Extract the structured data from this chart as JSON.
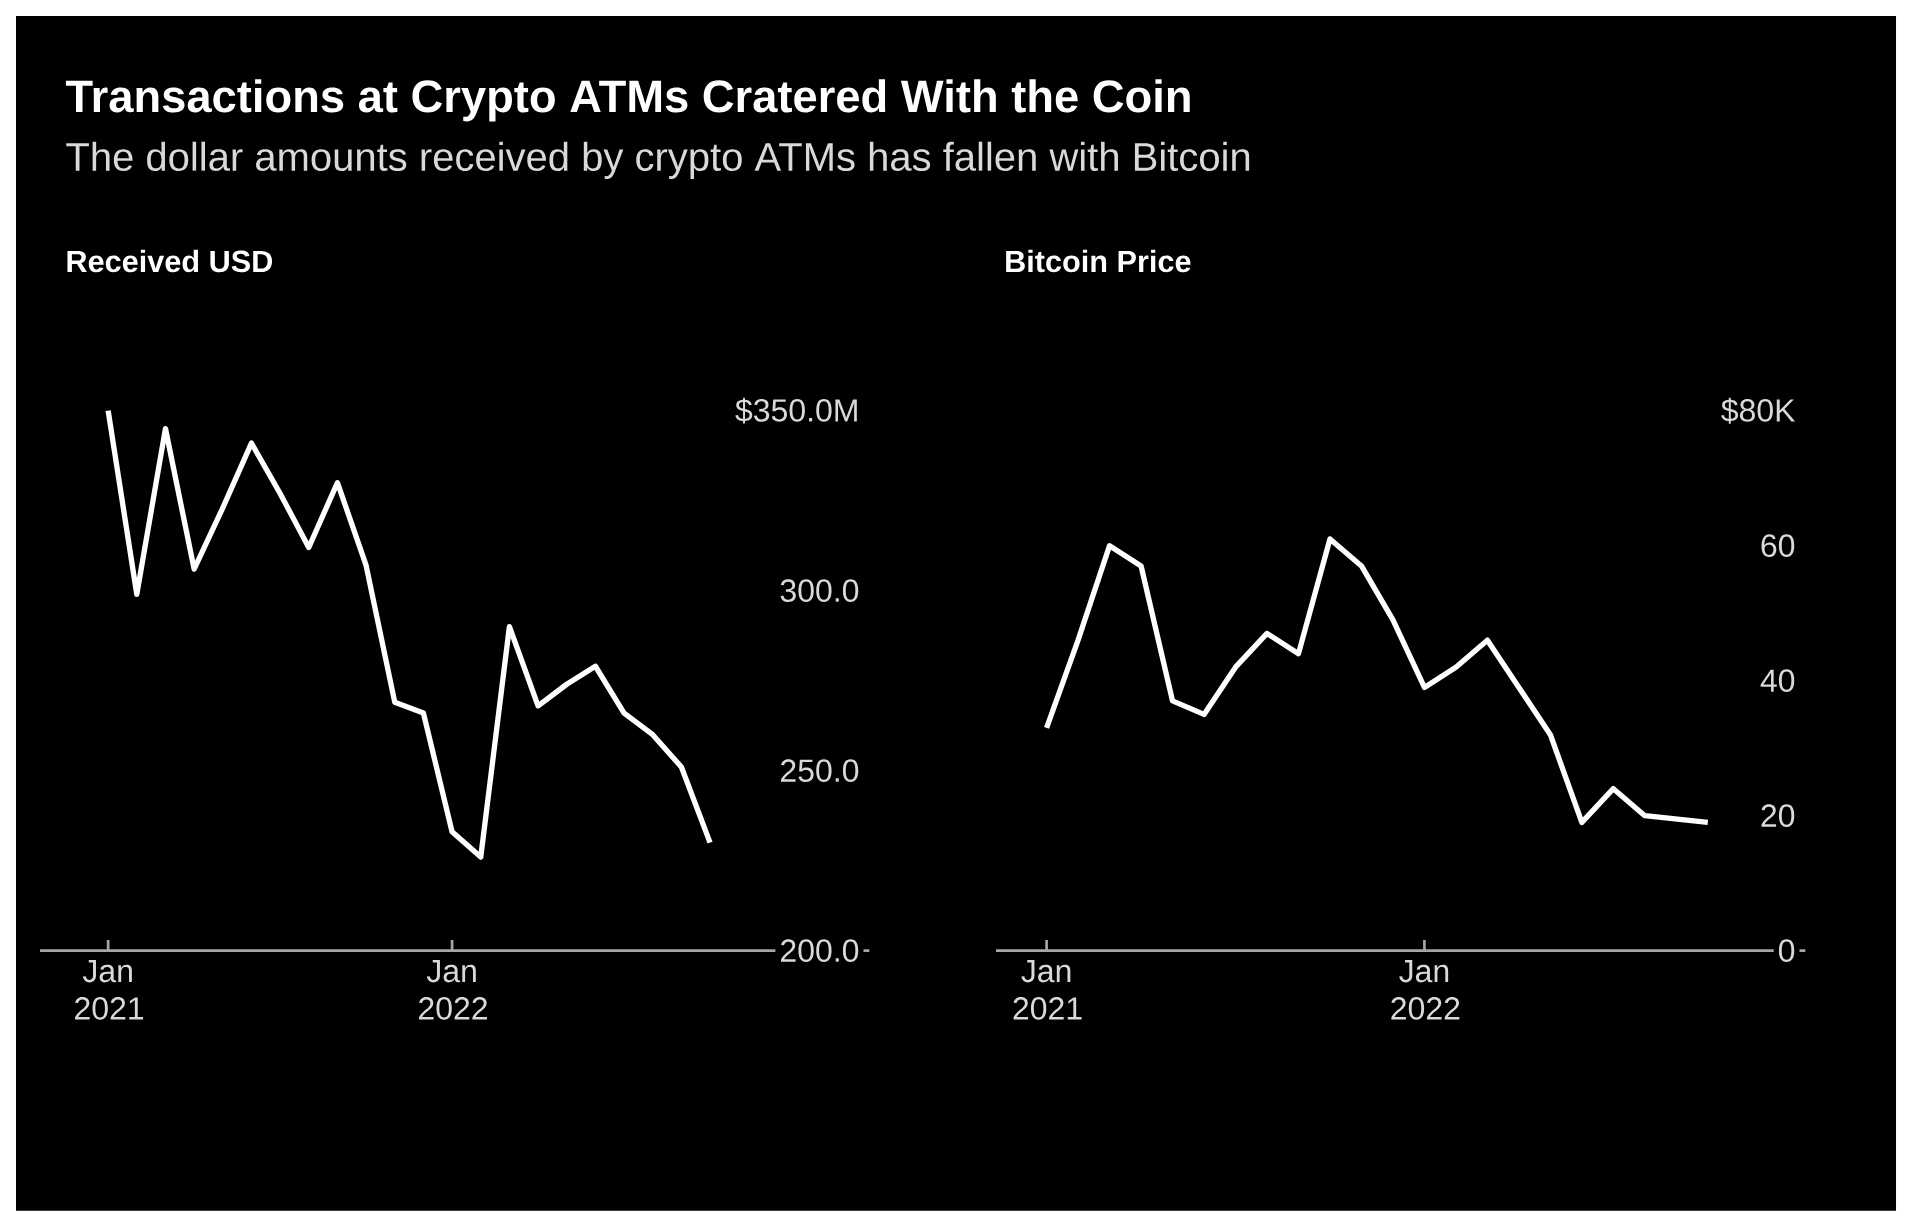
{
  "chart_data": [
    {
      "type": "line",
      "title": "Transactions at Crypto ATMs Cratered With the Coin",
      "subtitle": "The dollar amounts received by crypto ATMs has fallen with Bitcoin",
      "ylabel": "Received USD",
      "x": [
        "2021-01",
        "2021-02",
        "2021-03",
        "2021-04",
        "2021-05",
        "2021-06",
        "2021-07",
        "2021-08",
        "2021-09",
        "2021-10",
        "2021-11",
        "2021-12",
        "2022-01",
        "2022-02",
        "2022-03",
        "2022-04",
        "2022-05",
        "2022-06",
        "2022-07",
        "2022-08",
        "2022-09",
        "2022-10"
      ],
      "values": [
        350,
        299,
        345,
        306,
        323,
        341,
        327,
        312,
        330,
        307,
        269,
        266,
        233,
        226,
        290,
        268,
        274,
        279,
        266,
        260,
        251,
        230
      ],
      "color": "#ffffff",
      "xlim": [
        "2020-10-20",
        "2023-03-18"
      ],
      "xticks": [
        {
          "value": "2021-01",
          "label": "Jan 2021"
        },
        {
          "value": "2022-01",
          "label": "Jan 2022"
        }
      ],
      "ylim": [
        200,
        350
      ],
      "yticks": [
        {
          "value": 350,
          "label": "$350.0M"
        },
        {
          "value": 300,
          "label": "300.0"
        },
        {
          "value": 250,
          "label": "250.0"
        },
        {
          "value": 200,
          "label": "200.0"
        }
      ]
    },
    {
      "type": "line",
      "ylabel": "Bitcoin Price",
      "x": [
        "2021-01",
        "2021-02",
        "2021-03",
        "2021-04",
        "2021-05",
        "2021-06",
        "2021-07",
        "2021-08",
        "2021-09",
        "2021-10",
        "2021-11",
        "2021-12",
        "2022-01",
        "2022-02",
        "2022-03",
        "2022-04",
        "2022-05",
        "2022-06",
        "2022-07",
        "2022-08",
        "2022-10"
      ],
      "values": [
        33,
        46,
        60,
        57,
        37,
        35,
        42,
        47,
        44,
        61,
        57,
        49,
        39,
        42,
        46,
        39,
        32,
        19,
        24,
        20,
        19
      ],
      "color": "#ffffff",
      "xlim": [
        "2020-11-13",
        "2023-01-04"
      ],
      "xticks": [
        {
          "value": "2021-01",
          "label": "Jan 2021"
        },
        {
          "value": "2022-01",
          "label": "Jan 2022"
        }
      ],
      "ylim": [
        0,
        80
      ],
      "yticks": [
        {
          "value": 80,
          "label": "$80K"
        },
        60,
        40,
        20,
        0
      ]
    }
  ]
}
